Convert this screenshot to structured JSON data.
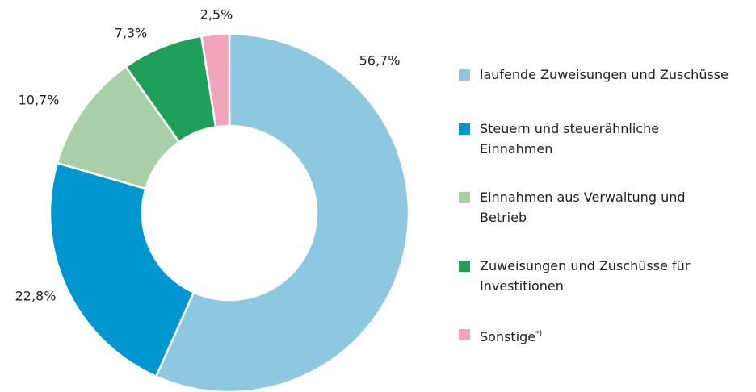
{
  "chart_data": {
    "type": "donut",
    "categories": [
      "laufende Zuweisungen und Zuschüsse",
      "Steuern und steuerähnliche Einnahmen",
      "Einnahmen aus Verwaltung und Betrieb",
      "Zuweisungen und Zuschüsse für Investitionen",
      "Sonstige"
    ],
    "superscripts": [
      null,
      null,
      null,
      null,
      "*)"
    ],
    "values": [
      56.7,
      22.8,
      10.7,
      7.3,
      2.5
    ],
    "value_labels": [
      "56,7%",
      "22,8%",
      "10,7%",
      "7,3%",
      "2,5%"
    ],
    "colors": [
      "#8ec8e0",
      "#0097d1",
      "#a9cfa7",
      "#1f9f59",
      "#f2a4bc"
    ],
    "legend": "right"
  }
}
